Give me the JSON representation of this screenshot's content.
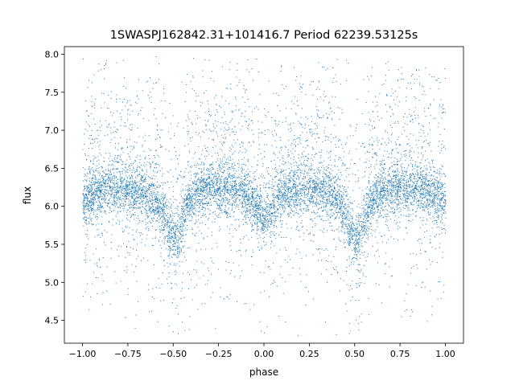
{
  "chart_data": {
    "type": "scatter",
    "title": "1SWASPJ162842.31+101416.7 Period 62239.53125s",
    "xlabel": "phase",
    "ylabel": "flux",
    "xlim": [
      -1.1,
      1.1
    ],
    "ylim": [
      4.2,
      8.1
    ],
    "xticks": [
      -1.0,
      -0.75,
      -0.5,
      -0.25,
      0.0,
      0.25,
      0.5,
      0.75,
      1.0
    ],
    "xtick_labels": [
      "−1.00",
      "−0.75",
      "−0.50",
      "−0.25",
      "0.00",
      "0.25",
      "0.50",
      "0.75",
      "1.00"
    ],
    "yticks": [
      4.5,
      5.0,
      5.5,
      6.0,
      6.5,
      7.0,
      7.5,
      8.0
    ],
    "ytick_labels": [
      "4.5",
      "5.0",
      "5.5",
      "6.0",
      "6.5",
      "7.0",
      "7.5",
      "8.0"
    ],
    "grid": false,
    "legend": "none",
    "color": "#1f77b4",
    "series": [
      {
        "x": [
          -1.0,
          -0.95,
          -0.9,
          -0.85,
          -0.8,
          -0.75,
          -0.7,
          -0.65,
          -0.6,
          -0.575,
          -0.55,
          -0.525,
          -0.5,
          -0.475,
          -0.45,
          -0.425,
          -0.4,
          -0.35,
          -0.3,
          -0.25,
          -0.2,
          -0.15,
          -0.1,
          -0.075,
          -0.05,
          -0.025,
          0.0,
          0.025,
          0.05,
          0.075,
          0.1,
          0.15,
          0.2,
          0.25,
          0.3,
          0.35,
          0.4,
          0.425,
          0.45,
          0.475,
          0.5,
          0.525,
          0.55,
          0.575,
          0.6,
          0.65,
          0.7,
          0.75,
          0.8,
          0.85,
          0.9,
          0.95,
          1.0
        ],
        "y": [
          6.05,
          6.15,
          6.2,
          6.25,
          6.25,
          6.22,
          6.2,
          6.15,
          6.1,
          6.0,
          5.85,
          5.65,
          5.55,
          5.6,
          5.8,
          6.0,
          6.1,
          6.2,
          6.25,
          6.22,
          6.22,
          6.2,
          6.15,
          6.1,
          6.0,
          5.9,
          5.85,
          5.9,
          6.0,
          6.1,
          6.15,
          6.2,
          6.22,
          6.25,
          6.25,
          6.2,
          6.1,
          6.0,
          5.85,
          5.65,
          5.55,
          5.6,
          5.8,
          6.0,
          6.1,
          6.2,
          6.22,
          6.25,
          6.25,
          6.22,
          6.2,
          6.15,
          6.05
        ]
      }
    ]
  }
}
